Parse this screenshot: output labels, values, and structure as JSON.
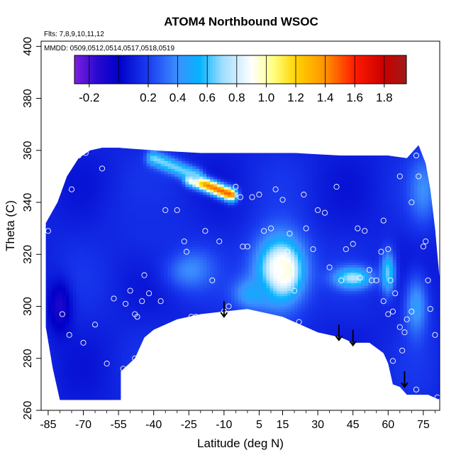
{
  "chart_data": {
    "type": "heatmap",
    "title": "ATOM4 Northbound WSOC",
    "annotations": {
      "flights": "Flts: 7,8,9,10,11,12",
      "dates": "MMDD: 0509,0512,0514,0517,0518,0519"
    },
    "xlabel": "Latitude (deg N)",
    "ylabel": "Theta (C)",
    "xlim": [
      -88,
      82
    ],
    "ylim": [
      260,
      402
    ],
    "x_ticks": [
      -85,
      -70,
      -55,
      -40,
      -25,
      -10,
      5,
      15,
      30,
      45,
      60,
      75
    ],
    "x_minor_ticks": [
      -80,
      -75,
      -65,
      -60,
      -50,
      -45,
      -35,
      -30,
      -20,
      -15,
      -5,
      0,
      10,
      20,
      25,
      35,
      40,
      50,
      55,
      65,
      70,
      80
    ],
    "y_ticks": [
      260,
      280,
      300,
      320,
      340,
      360,
      380,
      400
    ],
    "grid": false,
    "colorbar": {
      "range": [
        -0.3,
        1.95
      ],
      "tick_values": [
        -0.2,
        0.2,
        0.4,
        0.6,
        0.8,
        1.0,
        1.2,
        1.4,
        1.6,
        1.8
      ],
      "tick_labels": [
        "-0.2",
        "0.2",
        "0.4",
        "0.6",
        "0.8",
        "1.0",
        "1.2",
        "1.4",
        "1.6",
        "1.8"
      ],
      "divider_values": [
        -0.2,
        0,
        0.2,
        0.4,
        0.6,
        0.8,
        1.0,
        1.2,
        1.4,
        1.6,
        1.8
      ],
      "colors": [
        {
          "v": -0.3,
          "c": "#7f1fe0"
        },
        {
          "v": -0.15,
          "c": "#2a0ad0"
        },
        {
          "v": 0.0,
          "c": "#0000c8"
        },
        {
          "v": 0.2,
          "c": "#1a3cf0"
        },
        {
          "v": 0.4,
          "c": "#3c90ff"
        },
        {
          "v": 0.55,
          "c": "#05b4ff"
        },
        {
          "v": 0.7,
          "c": "#9ddcff"
        },
        {
          "v": 0.9,
          "c": "#ffffff"
        },
        {
          "v": 1.05,
          "c": "#ffff80"
        },
        {
          "v": 1.2,
          "c": "#ffd400"
        },
        {
          "v": 1.4,
          "c": "#ff9200"
        },
        {
          "v": 1.6,
          "c": "#ff1a00"
        },
        {
          "v": 1.8,
          "c": "#c80000"
        },
        {
          "v": 1.95,
          "c": "#a01a1a"
        }
      ]
    },
    "field": {
      "background_value": 0.12,
      "upper_boundary": [
        [
          -86,
          332
        ],
        [
          -81,
          340
        ],
        [
          -77,
          350
        ],
        [
          -72,
          357
        ],
        [
          -67,
          360
        ],
        [
          -62,
          361
        ],
        [
          -55,
          361
        ],
        [
          -40,
          360
        ],
        [
          -20,
          359
        ],
        [
          0,
          359
        ],
        [
          20,
          359
        ],
        [
          40,
          358
        ],
        [
          60,
          358
        ],
        [
          68,
          357
        ],
        [
          73,
          362
        ],
        [
          76,
          355
        ],
        [
          78,
          345
        ],
        [
          80,
          330
        ],
        [
          82,
          310
        ],
        [
          82,
          264
        ]
      ],
      "lower_boundary": [
        [
          -86,
          292
        ],
        [
          -83,
          276
        ],
        [
          -80,
          264
        ],
        [
          -54,
          264
        ],
        [
          -54,
          275
        ],
        [
          -48,
          280
        ],
        [
          -44,
          288
        ],
        [
          -40,
          291
        ],
        [
          -30,
          295
        ],
        [
          -20,
          297
        ],
        [
          -10,
          298
        ],
        [
          0,
          299
        ],
        [
          10,
          297
        ],
        [
          15,
          296
        ],
        [
          20,
          294
        ],
        [
          30,
          290
        ],
        [
          40,
          288
        ],
        [
          45,
          286
        ],
        [
          52,
          286
        ],
        [
          58,
          282
        ],
        [
          60,
          278
        ],
        [
          62,
          270
        ],
        [
          65,
          269
        ],
        [
          68,
          266
        ],
        [
          72,
          266
        ],
        [
          77,
          266
        ],
        [
          82,
          264
        ]
      ],
      "features": [
        {
          "x": [
            -24,
            -7
          ],
          "y": [
            349,
            343
          ],
          "value": 1.55,
          "width": 2.5,
          "type": "ridge"
        },
        {
          "x": [
            -40,
            -22
          ],
          "y": [
            357,
            350
          ],
          "value": 0.7,
          "width": 3,
          "type": "ridge"
        },
        {
          "x": 15,
          "y": 314,
          "value": 1.7,
          "rx": 5,
          "ry": 6
        },
        {
          "x": 14,
          "y": 314,
          "value": 0.9,
          "rx": 11,
          "ry": 14
        },
        {
          "x": 2,
          "y": 305,
          "value": 0.5,
          "rx": 8,
          "ry": 6
        },
        {
          "x": 45,
          "y": 311,
          "value": 0.75,
          "rx": 8,
          "ry": 4
        },
        {
          "x": 60,
          "y": 313,
          "value": 0.65,
          "rx": 3,
          "ry": 8
        },
        {
          "x": -25,
          "y": 315,
          "value": 0.45,
          "rx": 10,
          "ry": 8
        },
        {
          "x": 72,
          "y": 300,
          "value": 0.45,
          "rx": 5,
          "ry": 12
        },
        {
          "x": 75,
          "y": 345,
          "value": 0.4,
          "rx": 6,
          "ry": 12
        },
        {
          "x": -80,
          "y": 300,
          "value": -0.1,
          "rx": 5,
          "ry": 10
        },
        {
          "x": -40,
          "y": 330,
          "value": 0.15,
          "rx": 20,
          "ry": 15
        }
      ]
    },
    "observations": [
      [
        -85,
        329
      ],
      [
        -82,
        342
      ],
      [
        -79,
        297
      ],
      [
        -76,
        289
      ],
      [
        -75,
        345
      ],
      [
        -72,
        358
      ],
      [
        -69,
        359
      ],
      [
        -62,
        353
      ],
      [
        -57,
        303
      ],
      [
        -52,
        301
      ],
      [
        -50,
        306
      ],
      [
        -48,
        297
      ],
      [
        -47,
        296
      ],
      [
        -45,
        302
      ],
      [
        -44,
        312
      ],
      [
        -42,
        305
      ],
      [
        -40,
        289
      ],
      [
        -37,
        302
      ],
      [
        -35,
        337
      ],
      [
        -33,
        292
      ],
      [
        -30,
        337
      ],
      [
        -27,
        325
      ],
      [
        -26,
        321
      ],
      [
        -24,
        296
      ],
      [
        -22,
        296
      ],
      [
        -18,
        329
      ],
      [
        -15,
        310
      ],
      [
        -12,
        325
      ],
      [
        -10,
        298
      ],
      [
        -8,
        300
      ],
      [
        -5,
        346
      ],
      [
        -3,
        342
      ],
      [
        -2,
        323
      ],
      [
        0,
        323
      ],
      [
        2,
        342
      ],
      [
        5,
        343
      ],
      [
        7,
        329
      ],
      [
        10,
        330
      ],
      [
        12,
        345
      ],
      [
        13,
        314
      ],
      [
        15,
        341
      ],
      [
        17,
        321
      ],
      [
        18,
        328
      ],
      [
        20,
        306
      ],
      [
        22,
        294
      ],
      [
        24,
        343
      ],
      [
        25,
        330
      ],
      [
        28,
        322
      ],
      [
        30,
        337
      ],
      [
        33,
        336
      ],
      [
        35,
        315
      ],
      [
        38,
        346
      ],
      [
        40,
        310
      ],
      [
        42,
        322
      ],
      [
        45,
        324
      ],
      [
        47,
        330
      ],
      [
        48,
        311
      ],
      [
        50,
        329
      ],
      [
        52,
        314
      ],
      [
        53,
        310
      ],
      [
        55,
        310
      ],
      [
        57,
        321
      ],
      [
        58,
        333
      ],
      [
        60,
        322
      ],
      [
        61,
        310
      ],
      [
        62,
        298
      ],
      [
        63,
        305
      ],
      [
        65,
        292
      ],
      [
        66,
        283
      ],
      [
        67,
        290
      ],
      [
        68,
        295
      ],
      [
        70,
        340
      ],
      [
        72,
        358
      ],
      [
        73,
        350
      ],
      [
        75,
        323
      ],
      [
        76,
        325
      ],
      [
        77,
        310
      ],
      [
        78,
        299
      ],
      [
        80,
        289
      ],
      [
        81,
        265
      ],
      [
        -70,
        286
      ],
      [
        -65,
        293
      ],
      [
        -60,
        278
      ],
      [
        58,
        302
      ],
      [
        60,
        297
      ],
      [
        62,
        279
      ],
      [
        -53,
        276
      ],
      [
        -48,
        280
      ],
      [
        65,
        350
      ],
      [
        70,
        298
      ],
      [
        72,
        268
      ]
    ],
    "arrows": [
      {
        "x": -10,
        "y_from": 302,
        "y_to": 296
      },
      {
        "x": 39,
        "y_from": 293,
        "y_to": 287
      },
      {
        "x": 45,
        "y_from": 291,
        "y_to": 285
      },
      {
        "x": 67,
        "y_from": 275,
        "y_to": 269
      }
    ]
  }
}
